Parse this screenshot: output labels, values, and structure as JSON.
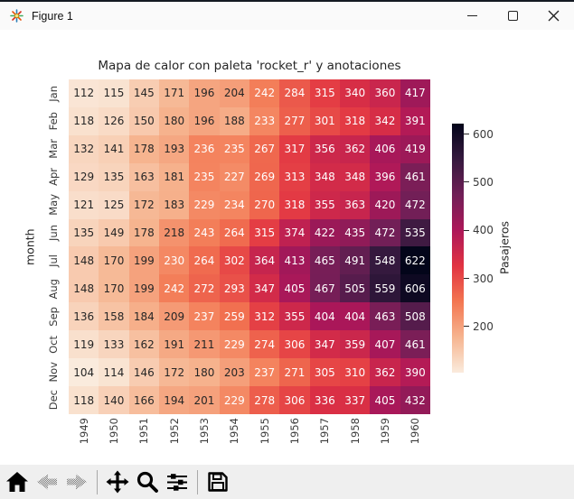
{
  "window": {
    "title": "Figure 1",
    "controls": [
      "minimize",
      "maximize",
      "close"
    ]
  },
  "toolbar": {
    "icons": [
      "home-icon",
      "back-arrow-icon",
      "forward-arrow-icon",
      "pan-icon",
      "zoom-icon",
      "configure-subplots-icon",
      "save-icon"
    ]
  },
  "chart_data": {
    "type": "heatmap",
    "title": "Mapa de calor con paleta 'rocket_r' y anotaciones",
    "xlabel": "",
    "ylabel": "month",
    "colorbar_label": "Pasajeros",
    "colormap": "rocket_r",
    "columns": [
      "1949",
      "1950",
      "1951",
      "1952",
      "1953",
      "1954",
      "1955",
      "1956",
      "1957",
      "1958",
      "1959",
      "1960"
    ],
    "rows": [
      "Jan",
      "Feb",
      "Mar",
      "Apr",
      "May",
      "Jun",
      "Jul",
      "Aug",
      "Sep",
      "Oct",
      "Nov",
      "Dec"
    ],
    "values": [
      [
        112,
        115,
        145,
        171,
        196,
        204,
        242,
        284,
        315,
        340,
        360,
        417
      ],
      [
        118,
        126,
        150,
        180,
        196,
        188,
        233,
        277,
        301,
        318,
        342,
        391
      ],
      [
        132,
        141,
        178,
        193,
        236,
        235,
        267,
        317,
        356,
        362,
        406,
        419
      ],
      [
        129,
        135,
        163,
        181,
        235,
        227,
        269,
        313,
        348,
        348,
        396,
        461
      ],
      [
        121,
        125,
        172,
        183,
        229,
        234,
        270,
        318,
        355,
        363,
        420,
        472
      ],
      [
        135,
        149,
        178,
        218,
        243,
        264,
        315,
        374,
        422,
        435,
        472,
        535
      ],
      [
        148,
        170,
        199,
        230,
        264,
        302,
        364,
        413,
        465,
        491,
        548,
        622
      ],
      [
        148,
        170,
        199,
        242,
        272,
        293,
        347,
        405,
        467,
        505,
        559,
        606
      ],
      [
        136,
        158,
        184,
        209,
        237,
        259,
        312,
        355,
        404,
        404,
        463,
        508
      ],
      [
        119,
        133,
        162,
        191,
        211,
        229,
        274,
        306,
        347,
        359,
        407,
        461
      ],
      [
        104,
        114,
        146,
        172,
        180,
        203,
        237,
        271,
        305,
        310,
        362,
        390
      ],
      [
        118,
        140,
        166,
        194,
        201,
        229,
        278,
        306,
        336,
        337,
        405,
        432
      ]
    ],
    "vmin": 104,
    "vmax": 622,
    "colorbar_ticks": [
      200,
      300,
      400,
      500,
      600
    ],
    "colormap_stops_dark_to_light": [
      "#03051A",
      "#35193E",
      "#701F57",
      "#AD1759",
      "#E13342",
      "#F37651",
      "#F6B48F",
      "#FAEBDD"
    ],
    "annotation_dark_text_color": "#262626",
    "annotation_light_text_color": "#ffffff",
    "legend_position": "right",
    "grid": false
  }
}
